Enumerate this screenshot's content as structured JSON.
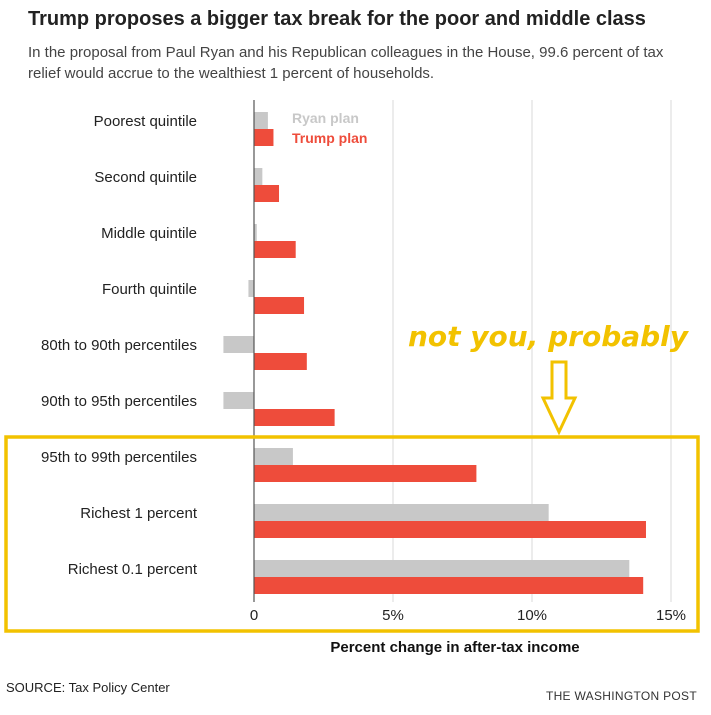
{
  "header": {
    "title": "Trump proposes a bigger tax break for the poor and middle class",
    "subtitle": "In the proposal from Paul Ryan and his Republican colleagues in the House, 99.6 percent of tax relief would accrue to the wealthiest 1 percent of households."
  },
  "footer": {
    "source": "SOURCE: Tax Policy Center",
    "credit": "THE WASHINGTON POST"
  },
  "colors": {
    "ryan": "#c8c8c8",
    "trump": "#ee4c3b",
    "grid": "#d8d8d8",
    "axis": "#555555",
    "highlight": "#f2c200"
  },
  "annotation": {
    "text": "not you, probably",
    "arrow": "down-arrow",
    "highlight_categories": [
      "95th to 99th percentiles",
      "Richest 1 percent",
      "Richest 0.1 percent"
    ]
  },
  "chart_data": {
    "type": "bar",
    "orientation": "horizontal",
    "categories": [
      "Poorest quintile",
      "Second quintile",
      "Middle quintile",
      "Fourth quintile",
      "80th to 90th percentiles",
      "90th to 95th percentiles",
      "95th to 99th percentiles",
      "Richest 1 percent",
      "Richest 0.1 percent"
    ],
    "series": [
      {
        "name": "Ryan plan",
        "values": [
          0.5,
          0.3,
          0.1,
          -0.2,
          -1.1,
          -1.1,
          1.4,
          10.6,
          13.5
        ]
      },
      {
        "name": "Trump plan",
        "values": [
          0.7,
          0.9,
          1.5,
          1.8,
          1.9,
          2.9,
          8.0,
          14.1,
          14.0
        ]
      }
    ],
    "title": "Trump proposes a bigger tax break for the poor and middle class",
    "xlabel": "Percent change in after-tax income",
    "ylabel": "",
    "xlim": [
      -1.5,
      15
    ],
    "xticks": [
      0,
      5,
      10,
      15
    ],
    "xtick_labels": [
      "0",
      "5%",
      "10%",
      "15%"
    ],
    "legend": [
      "Ryan plan",
      "Trump plan"
    ],
    "legend_placement": "top-left of plot area"
  }
}
